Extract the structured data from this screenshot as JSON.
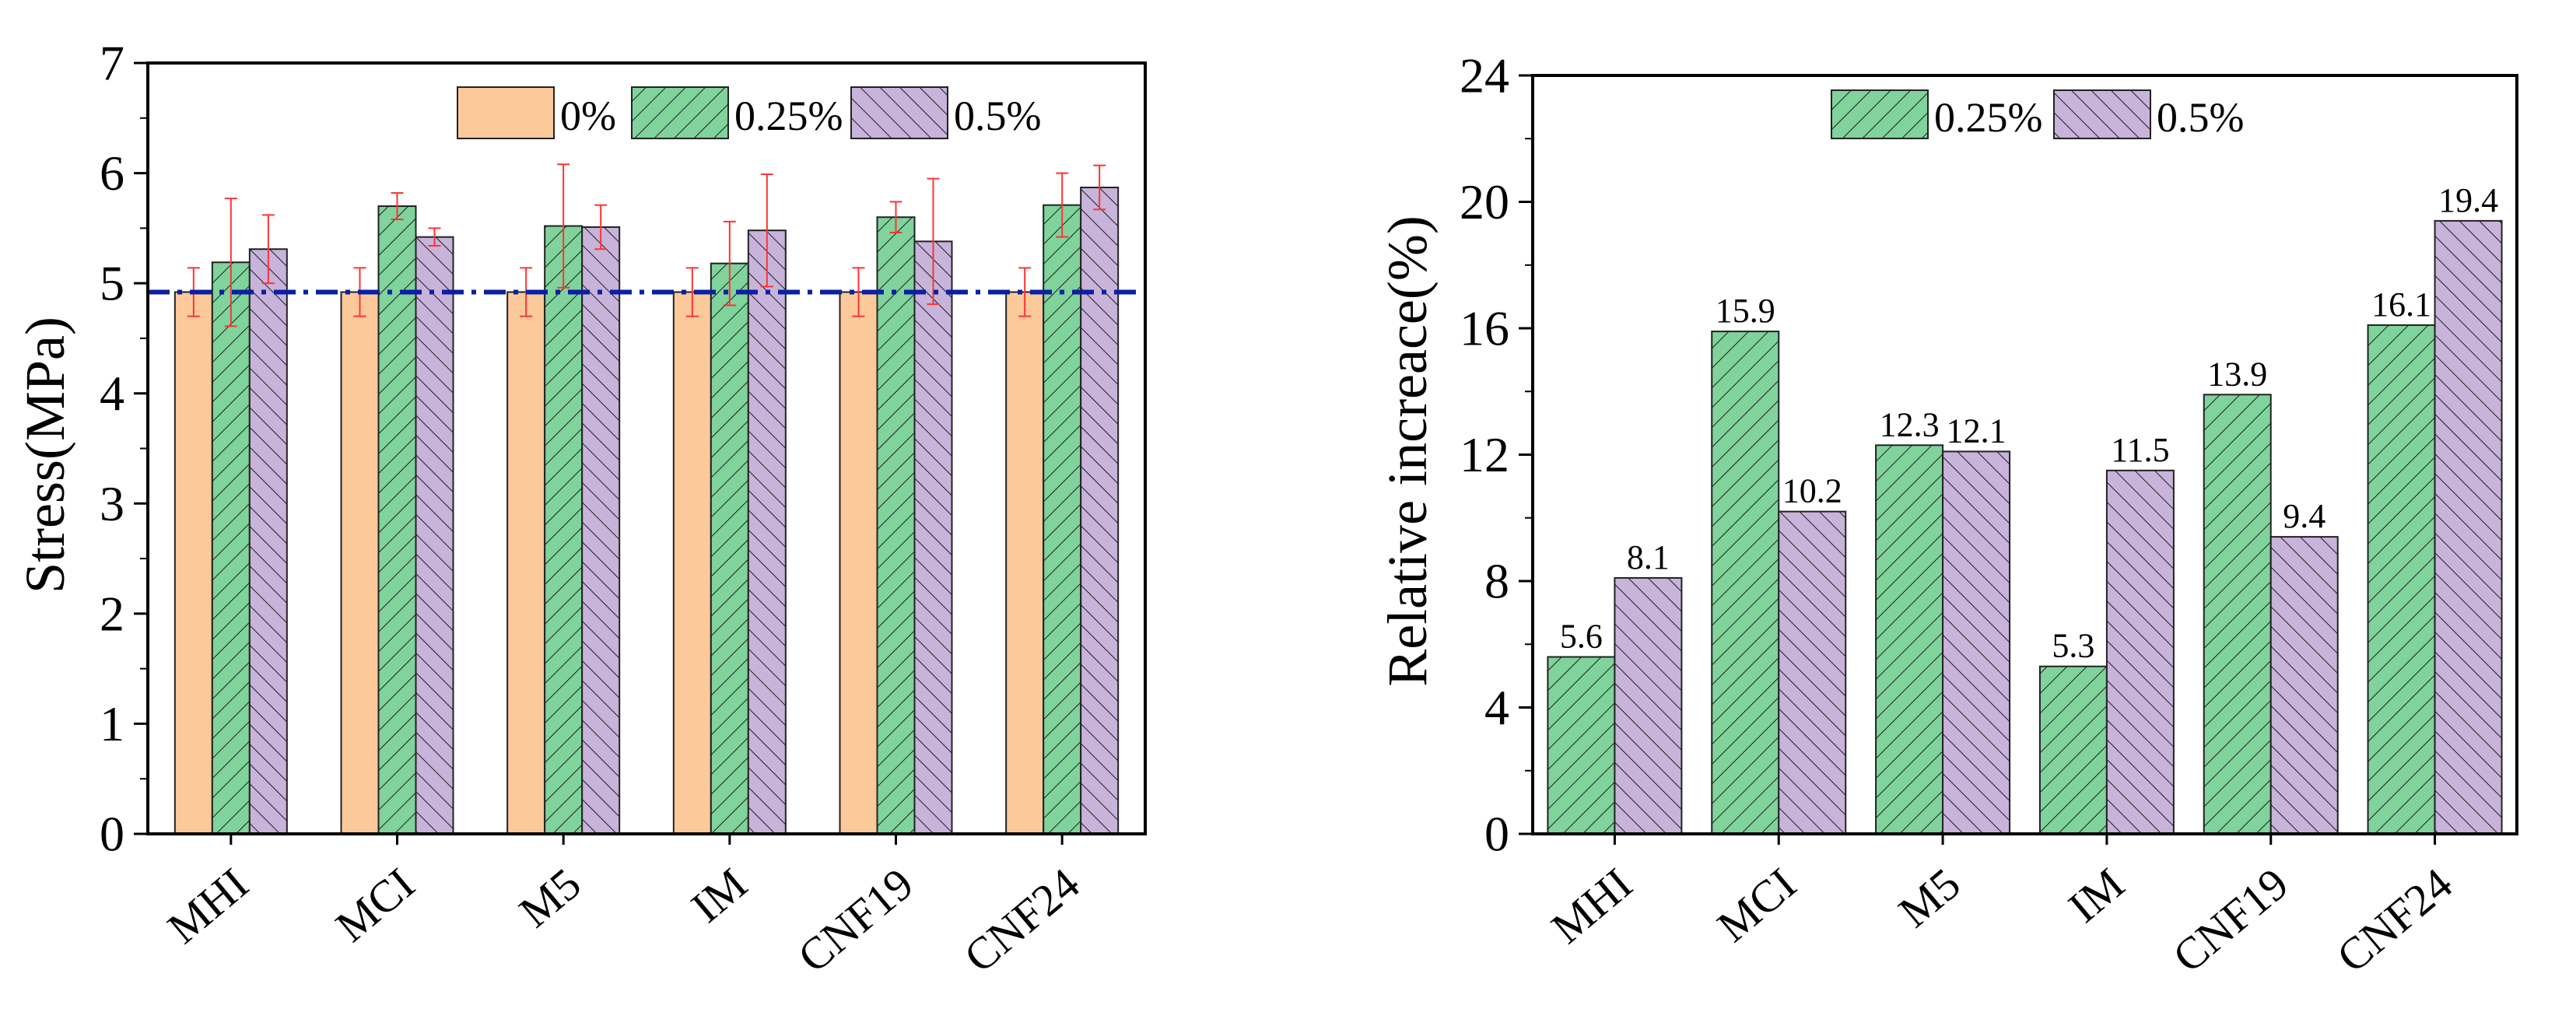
{
  "chart_data": [
    {
      "type": "bar",
      "ylabel": "Stress(MPa)",
      "xlabel": "",
      "categories": [
        "MHI",
        "MCI",
        "M5",
        "IM",
        "CNF19",
        "CNF24"
      ],
      "ylim": [
        0,
        7
      ],
      "yticks": [
        0,
        1,
        2,
        3,
        4,
        5,
        6,
        7
      ],
      "series": [
        {
          "name": "0%",
          "values": [
            4.92,
            4.92,
            4.92,
            4.92,
            4.92,
            4.92
          ],
          "err": [
            0.22,
            0.22,
            0.22,
            0.22,
            0.22,
            0.22
          ]
        },
        {
          "name": "0.25%",
          "values": [
            5.19,
            5.7,
            5.52,
            5.18,
            5.6,
            5.71
          ],
          "err": [
            0.58,
            0.12,
            0.56,
            0.38,
            0.14,
            0.29
          ]
        },
        {
          "name": "0.5%",
          "values": [
            5.31,
            5.42,
            5.51,
            5.48,
            5.38,
            5.87
          ],
          "err": [
            0.31,
            0.08,
            0.2,
            0.51,
            0.57,
            0.2
          ]
        }
      ],
      "reference_line": {
        "value": 4.92,
        "style": "dash-dot"
      },
      "legend_position": "top-right"
    },
    {
      "type": "bar",
      "ylabel": "Relative increace(%)",
      "xlabel": "",
      "categories": [
        "MHI",
        "MCI",
        "M5",
        "IM",
        "CNF19",
        "CNF24"
      ],
      "ylim": [
        0,
        24
      ],
      "yticks": [
        0,
        4,
        8,
        12,
        16,
        20,
        24
      ],
      "series": [
        {
          "name": "0.25%",
          "values": [
            5.6,
            15.9,
            12.3,
            5.3,
            13.9,
            16.1
          ],
          "labels": [
            "5.6",
            "15.9",
            "12.3",
            "5.3",
            "13.9",
            "16.1"
          ]
        },
        {
          "name": "0.5%",
          "values": [
            8.1,
            10.2,
            12.1,
            11.5,
            9.4,
            19.4
          ],
          "labels": [
            "8.1",
            "10.2",
            "12.1",
            "11.5",
            "9.4",
            "19.4"
          ]
        }
      ],
      "legend_position": "top-center"
    }
  ],
  "colors": {
    "s0": "#fcc99a",
    "s025": "#7fd39b",
    "s05": "#c8b3db",
    "refline": "#0b1fa5",
    "errbar": "#ff3333",
    "axis": "#000000"
  }
}
